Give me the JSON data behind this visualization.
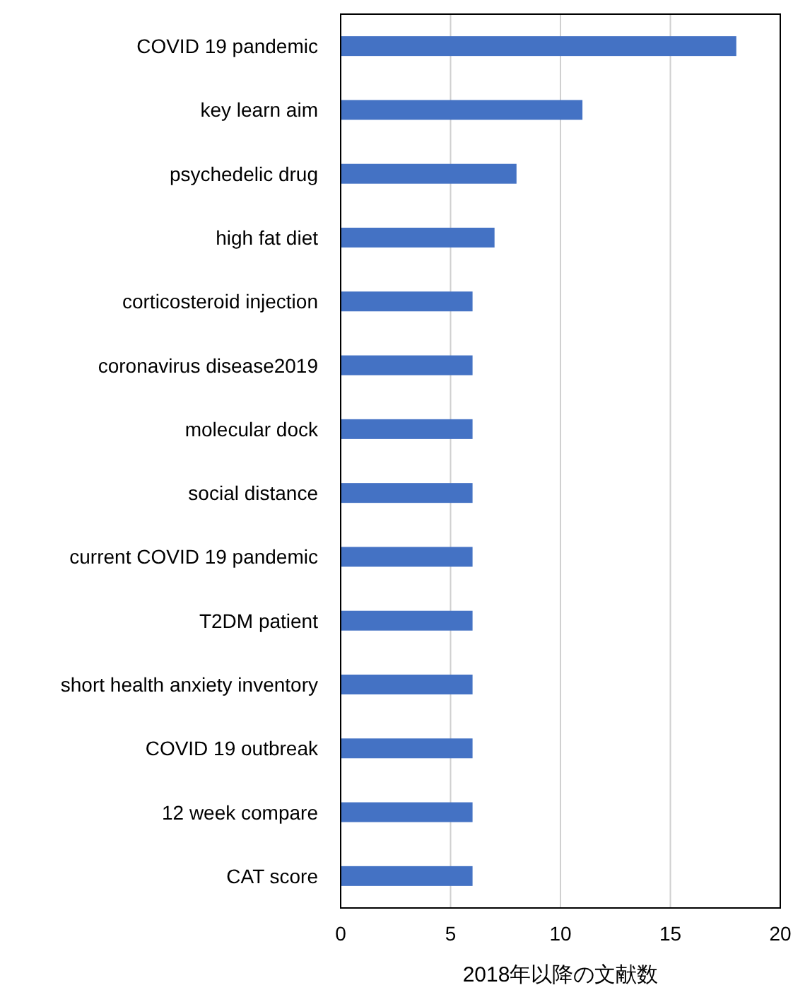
{
  "chart_data": {
    "type": "bar",
    "orientation": "horizontal",
    "xlabel": "2018年以降の文献数",
    "categories": [
      "COVID 19 pandemic",
      "key learn aim",
      "psychedelic drug",
      "high fat diet",
      "corticosteroid injection",
      "coronavirus disease2019",
      "molecular dock",
      "social distance",
      "current COVID 19 pandemic",
      "T2DM patient",
      "short health anxiety inventory",
      "COVID 19 outbreak",
      "12 week compare",
      "CAT score"
    ],
    "values": [
      18,
      11,
      8,
      7,
      6,
      6,
      6,
      6,
      6,
      6,
      6,
      6,
      6,
      6
    ],
    "color": "#4472c4",
    "xlim": [
      0,
      20
    ],
    "xticks": [
      0,
      5,
      10,
      15,
      20
    ],
    "grid": "x"
  }
}
